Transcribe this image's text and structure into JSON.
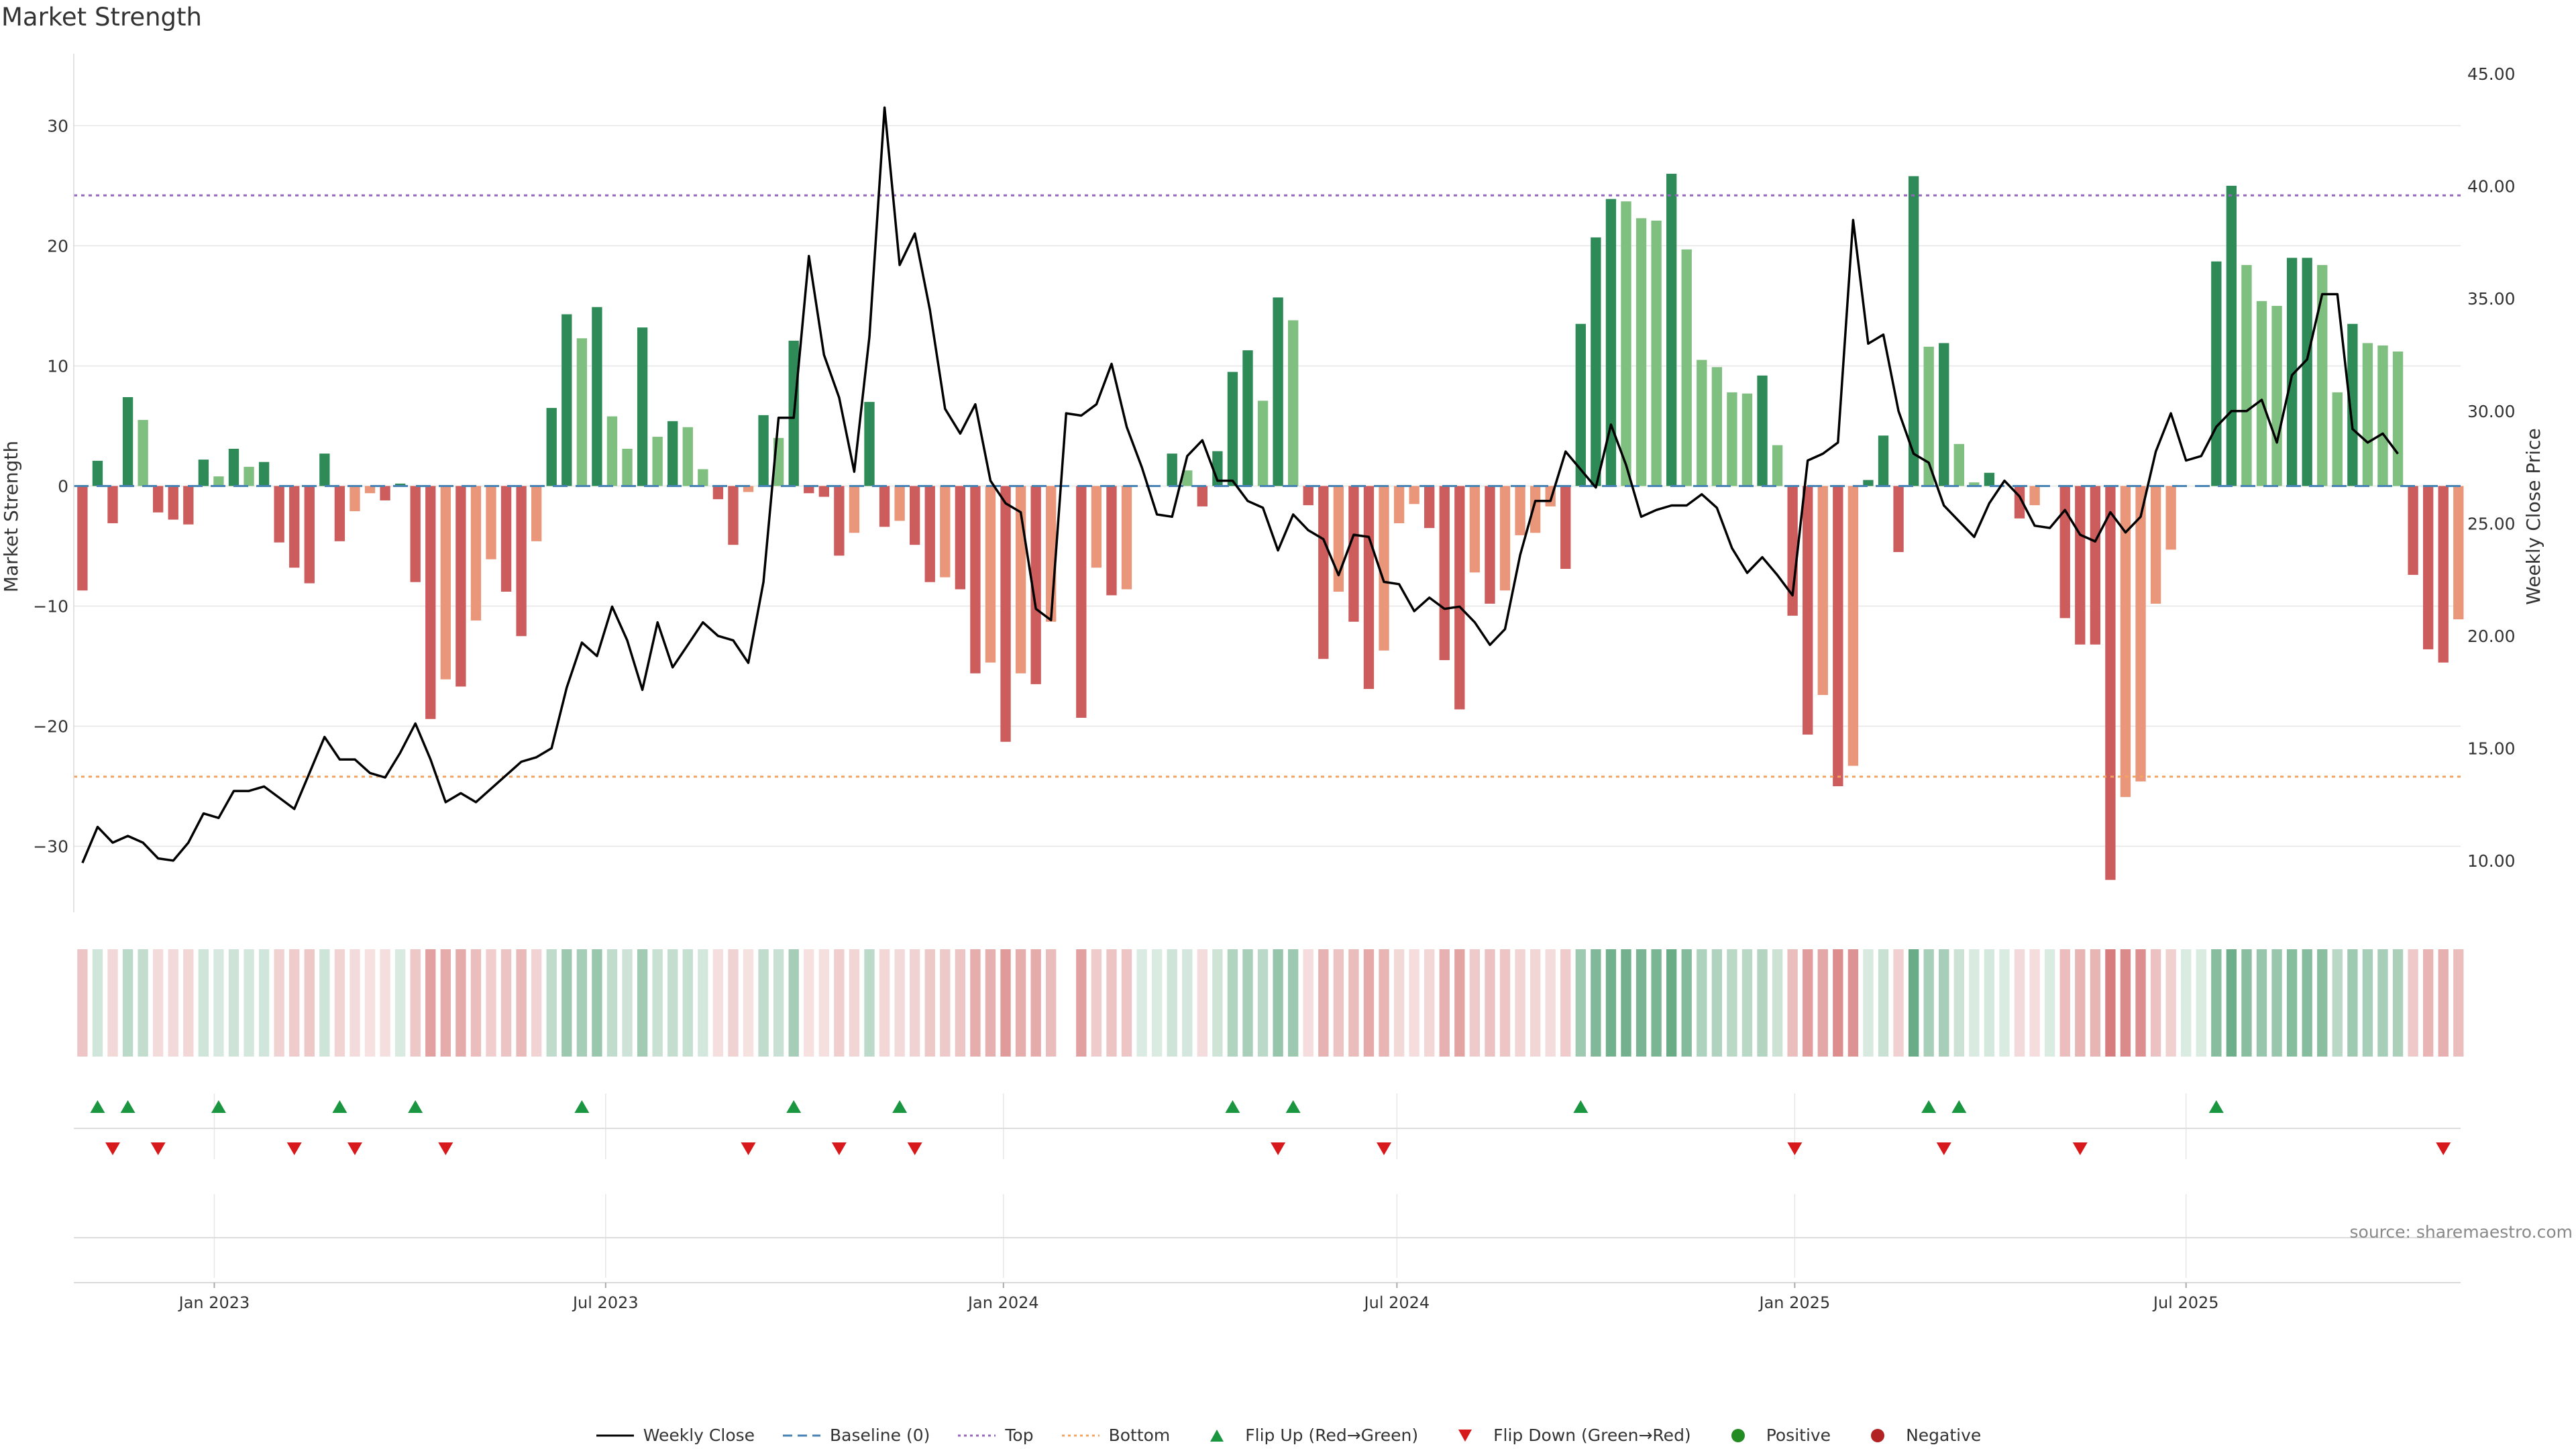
{
  "title": "Market Strength",
  "source": "source: sharemaestro.com",
  "colors": {
    "pos_dark": "#2e8b57",
    "pos_light": "#7fbf7f",
    "neg_dark": "#cd5c5c",
    "neg_light": "#e9967a",
    "price_line": "#000000",
    "baseline": "#4682b4",
    "top": "#9467bd",
    "bottom": "#f4a460",
    "flip_up": "#1a9641",
    "flip_down": "#d7191c",
    "positive_dot": "#228b22",
    "negative_dot": "#b22222"
  },
  "legend": [
    {
      "label": "Weekly Close",
      "kind": "line",
      "color": "#000000"
    },
    {
      "label": "Baseline (0)",
      "kind": "dash",
      "color": "#4682b4"
    },
    {
      "label": "Top",
      "kind": "dot",
      "color": "#9467bd"
    },
    {
      "label": "Bottom",
      "kind": "dot",
      "color": "#f4a460"
    },
    {
      "label": "Flip Up (Red→Green)",
      "kind": "tri-up",
      "color": "#1a9641"
    },
    {
      "label": "Flip Down (Green→Red)",
      "kind": "tri-down",
      "color": "#d7191c"
    },
    {
      "label": "Positive",
      "kind": "circle",
      "color": "#228b22"
    },
    {
      "label": "Negative",
      "kind": "circle",
      "color": "#b22222"
    }
  ],
  "chart_data": {
    "type": "bar",
    "title": "Market Strength",
    "ylabel": "Market Strength",
    "y2label": "Weekly Close Price",
    "ylim": [
      -35.5,
      36
    ],
    "y_ticks": [
      -30,
      -20,
      -10,
      0,
      10,
      20,
      30
    ],
    "y2lim": [
      7.7,
      45.9
    ],
    "y2_ticks": [
      "10.00",
      "15.00",
      "20.00",
      "25.00",
      "30.00",
      "35.00",
      "40.00",
      "45.00"
    ],
    "x_ticks": [
      {
        "label": "Jan 2023",
        "date": "2023-01-01"
      },
      {
        "label": "Jul 2023",
        "date": "2023-07-01"
      },
      {
        "label": "Jan 2024",
        "date": "2024-01-01"
      },
      {
        "label": "Jul 2024",
        "date": "2024-07-01"
      },
      {
        "label": "Jan 2025",
        "date": "2025-01-01"
      },
      {
        "label": "Jul 2025",
        "date": "2025-07-01"
      }
    ],
    "x_range": [
      "2022-10-28",
      "2025-11-05"
    ],
    "top_level": 24.2,
    "bottom_level": -24.2,
    "baseline": 0,
    "first_week": "2022-11-01",
    "gap_week_date": "2024-01-30",
    "series": [
      {
        "name": "Market Strength",
        "values": [
          -8.7,
          2.1,
          -3.1,
          7.4,
          5.5,
          -2.2,
          -2.8,
          -3.2,
          2.2,
          0.8,
          3.1,
          1.6,
          2,
          -4.7,
          -6.8,
          -8.1,
          2.7,
          -4.6,
          -2.1,
          -0.6,
          -1.2,
          0.2,
          -8,
          -19.4,
          -16.1,
          -16.7,
          -11.2,
          -6.1,
          -8.8,
          -12.5,
          -4.6,
          6.5,
          14.3,
          12.3,
          14.9,
          5.8,
          3.1,
          13.2,
          4.1,
          5.4,
          4.9,
          1.4,
          -1.1,
          -4.9,
          -0.5,
          5.9,
          4,
          12.1,
          -0.6,
          -0.9,
          -5.8,
          -3.9,
          7,
          -3.4,
          -2.9,
          -4.9,
          -8,
          -7.6,
          -8.6,
          -15.6,
          -14.7,
          -21.3,
          -15.6,
          -16.5,
          -11.3,
          0,
          -19.3,
          -6.8,
          -9.1,
          -8.6,
          0,
          0,
          2.7,
          1.3,
          -1.7,
          2.9,
          9.5,
          11.3,
          7.1,
          15.7,
          13.8,
          -1.6,
          -14.4,
          -8.8,
          -11.3,
          -16.9,
          -13.7,
          -3.1,
          -1.5,
          -3.5,
          -14.5,
          -18.6,
          -7.2,
          -9.8,
          -8.7,
          -4.1,
          -3.9,
          -1.7,
          -6.9,
          13.5,
          20.7,
          23.9,
          23.7,
          22.3,
          22.1,
          26,
          19.7,
          10.5,
          9.9,
          7.8,
          7.7,
          9.2,
          3.4,
          -10.8,
          -20.7,
          -17.4,
          -25,
          -23.3,
          0.5,
          4.2,
          -5.5,
          25.8,
          11.6,
          11.9,
          3.5,
          0.3,
          1.1,
          0,
          -2.7,
          -1.6,
          0,
          -11,
          -13.2,
          -13.2,
          -32.8,
          -25.9,
          -24.6,
          -9.8,
          -5.3,
          0,
          0,
          18.7,
          25,
          18.4,
          15.4,
          15,
          19,
          19,
          18.4,
          7.8,
          13.5,
          11.9,
          11.7,
          11.2,
          -7.4,
          -13.6,
          -14.7,
          -11.1
        ]
      },
      {
        "name": "Weekly Close",
        "values": [
          9.9,
          11.5,
          10.8,
          11.1,
          10.8,
          10.1,
          10,
          10.8,
          12.1,
          11.9,
          13.1,
          13.1,
          13.3,
          12.8,
          12.3,
          13.9,
          15.5,
          14.5,
          14.5,
          13.9,
          13.7,
          14.8,
          16.1,
          14.5,
          12.6,
          13,
          12.6,
          13.2,
          13.8,
          14.4,
          14.6,
          15,
          17.7,
          19.7,
          19.1,
          21.3,
          19.8,
          17.6,
          20.6,
          18.6,
          19.6,
          20.6,
          20,
          19.8,
          18.8,
          22.4,
          29.7,
          29.7,
          36.9,
          32.5,
          30.6,
          27.3,
          33.3,
          43.5,
          36.5,
          37.9,
          34.5,
          30.1,
          29,
          30.3,
          26.9,
          25.9,
          25.5,
          21.2,
          20.7,
          29.9,
          29.8,
          30.3,
          32.1,
          29.3,
          27.5,
          25.4,
          25.3,
          28,
          28.7,
          26.9,
          26.9,
          26,
          25.7,
          23.8,
          25.4,
          24.7,
          24.3,
          22.7,
          24.5,
          24.4,
          22.4,
          22.3,
          21.1,
          21.7,
          21.2,
          21.3,
          20.6,
          19.6,
          20.3,
          23.6,
          26,
          26,
          28.2,
          27.4,
          26.6,
          29.4,
          27.6,
          25.3,
          25.6,
          25.8,
          25.8,
          26.3,
          25.7,
          23.9,
          22.8,
          23.5,
          22.7,
          21.8,
          27.8,
          28.1,
          28.6,
          38.5,
          33,
          33.4,
          30,
          28.1,
          27.7,
          25.8,
          25.1,
          24.4,
          25.9,
          26.9,
          26.2,
          24.9,
          24.8,
          25.6,
          24.5,
          24.2,
          25.5,
          24.6,
          25.3,
          28.2,
          29.9,
          27.8,
          28,
          29.3,
          30,
          30,
          30.5,
          28.6,
          31.6,
          32.3,
          35.2,
          35.2,
          29.2,
          28.6,
          29,
          28.1
        ]
      },
      {
        "name": "Flip Up (Red→Green)",
        "dates": [
          "2022-11-08",
          "2022-11-22",
          "2023-01-03",
          "2023-02-28",
          "2023-04-04",
          "2023-06-20",
          "2023-09-26",
          "2023-11-14",
          "2024-04-16",
          "2024-05-14",
          "2024-09-24",
          "2025-03-04",
          "2025-03-18",
          "2025-07-15"
        ]
      },
      {
        "name": "Flip Down (Green→Red)",
        "dates": [
          "2022-11-15",
          "2022-12-06",
          "2023-02-07",
          "2023-03-07",
          "2023-04-18",
          "2023-09-05",
          "2023-10-17",
          "2023-11-21",
          "2024-05-07",
          "2024-06-25",
          "2025-01-01",
          "2025-03-11",
          "2025-05-13",
          "2025-10-28"
        ]
      },
      {
        "name": "Top",
        "values": [
          24.2
        ]
      },
      {
        "name": "Bottom",
        "values": [
          -24.2
        ]
      }
    ]
  }
}
